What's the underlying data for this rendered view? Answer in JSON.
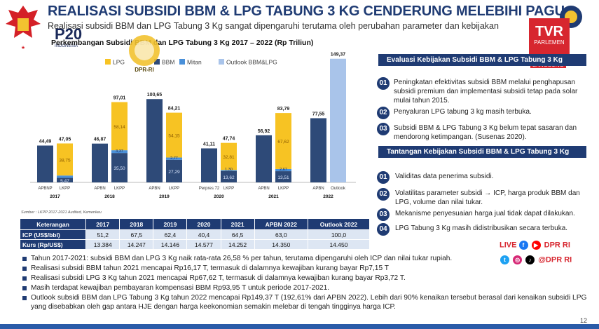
{
  "header": {
    "title": "REALISASI SUBSIDI BBM & LPG TABUNG 3 KG CENDERUNG MELEBIHI PAGU",
    "subtitle": "Realisasi subsidi BBM dan LPG Tabung 3 Kg sangat dipengaruhi terutama oleh perubahan parameter dan kebijakan",
    "chart_title": "Perkembangan Subsidi BBM dan LPG Tabung 3 Kg 2017 – 2022 (Rp Triliun)",
    "logo_p20": "P20",
    "logo_p20_sub": "INDONESIA",
    "dpr_seal_text": "DPR-RI",
    "tvr_logo": "TVR",
    "tvr_sub": "PARLEMEN",
    "tvr_live": "LANGSUNG"
  },
  "colors": {
    "navy": "#1f3b73",
    "lpg": "#f7c323",
    "bbm": "#2e4a78",
    "mitan": "#4a90d9",
    "outlook": "#a9c4ea",
    "red": "#d7262f"
  },
  "chart_data": {
    "type": "bar",
    "stacked": true,
    "legend": [
      "LPG",
      "BBM",
      "Mitan",
      "Outlook BBM&LPG"
    ],
    "legend_position": "top",
    "groups": [
      {
        "year": "2017",
        "bars": [
          {
            "label": "APBNP",
            "total": "44,49"
          },
          {
            "label": "LKPP",
            "total": "47,05",
            "lpg": "38,75",
            "bbm": "5,47"
          }
        ]
      },
      {
        "year": "2018",
        "bars": [
          {
            "label": "APBN",
            "total": "46,87"
          },
          {
            "label": "LKPP",
            "total": "97,01",
            "lpg": "58,14",
            "bbm": "35,50",
            "mitan": "3,37"
          }
        ]
      },
      {
        "year": "2019",
        "bars": [
          {
            "label": "APBN",
            "total": "100,65"
          },
          {
            "label": "LKPP",
            "total": "84,21",
            "lpg": "54,15",
            "bbm": "27,29",
            "mitan": "2,77"
          }
        ]
      },
      {
        "year": "2020",
        "bars": [
          {
            "label": "Perpres 72",
            "total": "41,11"
          },
          {
            "label": "LKPP",
            "total": "47,74",
            "lpg": "32,81",
            "bbm": "13,62",
            "mitan": "1,30"
          }
        ]
      },
      {
        "year": "2021",
        "bars": [
          {
            "label": "APBN",
            "total": "56,92"
          },
          {
            "label": "LKPP",
            "total": "83,79",
            "lpg": "67,62",
            "bbm": "13,51",
            "mitan": "2,67"
          }
        ]
      },
      {
        "year": "2022",
        "bars": [
          {
            "label": "APBN",
            "total": "77,55"
          },
          {
            "label": "Outlook",
            "total": "149,37"
          }
        ]
      }
    ],
    "values_numeric": {
      "totals": [
        44.49,
        47.05,
        46.87,
        97.01,
        100.65,
        84.21,
        41.11,
        47.74,
        56.92,
        83.79,
        77.55,
        149.37
      ],
      "lpg": [
        0,
        38.75,
        0,
        58.14,
        0,
        54.15,
        0,
        32.81,
        0,
        67.62,
        0,
        0
      ],
      "bbm": [
        44.49,
        5.47,
        46.87,
        35.5,
        100.65,
        27.29,
        41.11,
        13.62,
        56.92,
        13.51,
        77.55,
        0
      ],
      "mitan": [
        0,
        2.83,
        0,
        3.37,
        0,
        2.77,
        0,
        1.3,
        0,
        2.67,
        0,
        0
      ],
      "outlook": [
        0,
        0,
        0,
        0,
        0,
        0,
        0,
        0,
        0,
        0,
        0,
        149.37
      ]
    },
    "ylim": [
      0,
      160
    ]
  },
  "source": "Sumber : LKPP 2017-2021 Audited, Kemenkeu",
  "macro_table": {
    "headers": [
      "Keterangan",
      "2017",
      "2018",
      "2019",
      "2020",
      "2021",
      "APBN 2022",
      "Outlook 2022"
    ],
    "rows": [
      {
        "label": "ICP (US$/bbl)",
        "cells": [
          "51,2",
          "67,5",
          "62,4",
          "40,4",
          "64,5",
          "63,0",
          "100,0"
        ]
      },
      {
        "label": "Kurs (Rp/US$)",
        "cells": [
          "13.384",
          "14.247",
          "14.146",
          "14.577",
          "14.252",
          "14.350",
          "14.450"
        ]
      }
    ]
  },
  "evaluasi": {
    "heading": "Evaluasi Kebijakan Subsidi BBM & LPG Tabung 3 Kg",
    "items": [
      {
        "num": "01",
        "text": "Peningkatan efektivitas subsidi BBM melalui penghapusan subsidi premium dan implementasi subsidi tetap pada solar mulai tahun 2015."
      },
      {
        "num": "02",
        "text": "Penyaluran LPG tabung 3 kg masih terbuka."
      },
      {
        "num": "03",
        "text": "Subsidi BBM & LPG Tabung 3 Kg belum tepat sasaran dan mendorong ketimpangan. (Susenas 2020)."
      }
    ]
  },
  "tantangan": {
    "heading": "Tantangan Kebijakan Subsidi BBM & LPG Tabung 3 Kg",
    "items": [
      {
        "num": "01",
        "text": "Validitas data penerima subsidi."
      },
      {
        "num": "02",
        "text": "Volatilitas parameter subsidi → ICP, harga produk BBM dan LPG, volume dan nilai tukar."
      },
      {
        "num": "03",
        "text": "Mekanisme penyesuaian harga jual tidak dapat dilakukan."
      },
      {
        "num": "04",
        "text": "LPG Tabung 3 Kg masih didistribusikan secara terbuka."
      }
    ]
  },
  "bullets": [
    "Tahun 2017-2021: subsidi BBM dan LPG 3 Kg naik rata-rata 26,58 % per tahun, terutama dipengaruhi oleh ICP dan nilai tukar rupiah.",
    "Realisasi subsidi BBM tahun 2021 mencapai Rp16,17 T, termasuk di dalamnya kewajiban kurang bayar Rp7,15 T",
    "Realisasi subsidi LPG 3 Kg tahun 2021 mencapai Rp67,62 T, termasuk di dalamnya kewajiban kurang bayar Rp3,72 T.",
    "Masih terdapat kewajiban pembayaran kompensasi BBM Rp93,95 T untuk periode 2017-2021.",
    "Outlook subsidi BBM dan LPG Tabung 3 Kg tahun 2022 mencapai Rp149,37 T (192,61% dari APBN 2022). Lebih dari 90% kenaikan tersebut berasal dari kenaikan subsidi LPG yang disebabkan oleh gap antara HJE dengan harga keekonomian semakin melebar di tengah tingginya harga ICP."
  ],
  "broadcast": {
    "live_label": "LIVE",
    "live_handle": "DPR RI",
    "social_handle": "@DPR RI"
  },
  "page_number": "12"
}
